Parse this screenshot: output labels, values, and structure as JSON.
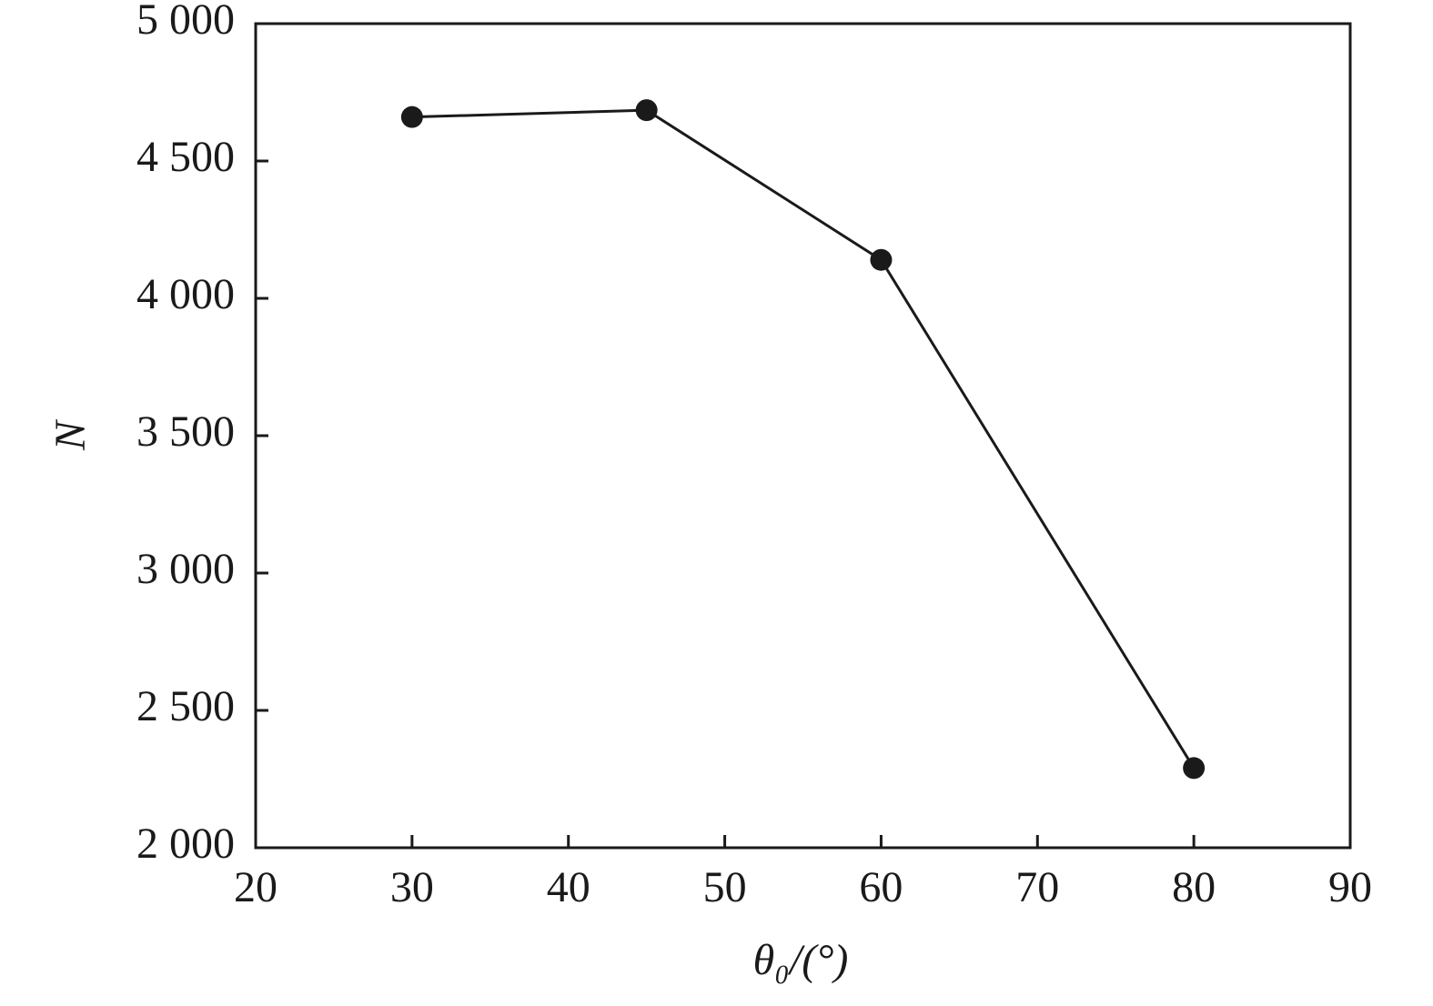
{
  "chart_data": {
    "type": "line",
    "x_label": "θ₀/(°)",
    "y_label": "N",
    "x": [
      30,
      45,
      60,
      80
    ],
    "values": [
      4660,
      4685,
      4140,
      2290
    ],
    "color": "#1a1a1a",
    "xlim": [
      20,
      90
    ],
    "xticks": [
      20,
      30,
      40,
      50,
      60,
      70,
      80,
      90
    ],
    "ylim": [
      2000,
      5000
    ],
    "yticks": [
      {
        "value": 2000,
        "label": "2 000"
      },
      {
        "value": 2500,
        "label": "2 500"
      },
      {
        "value": 3000,
        "label": "3 000"
      },
      {
        "value": 3500,
        "label": "3 500"
      },
      {
        "value": 4000,
        "label": "4 000"
      },
      {
        "value": 4500,
        "label": "4 500"
      },
      {
        "value": 5000,
        "label": "5 000"
      }
    ],
    "grid": false
  }
}
